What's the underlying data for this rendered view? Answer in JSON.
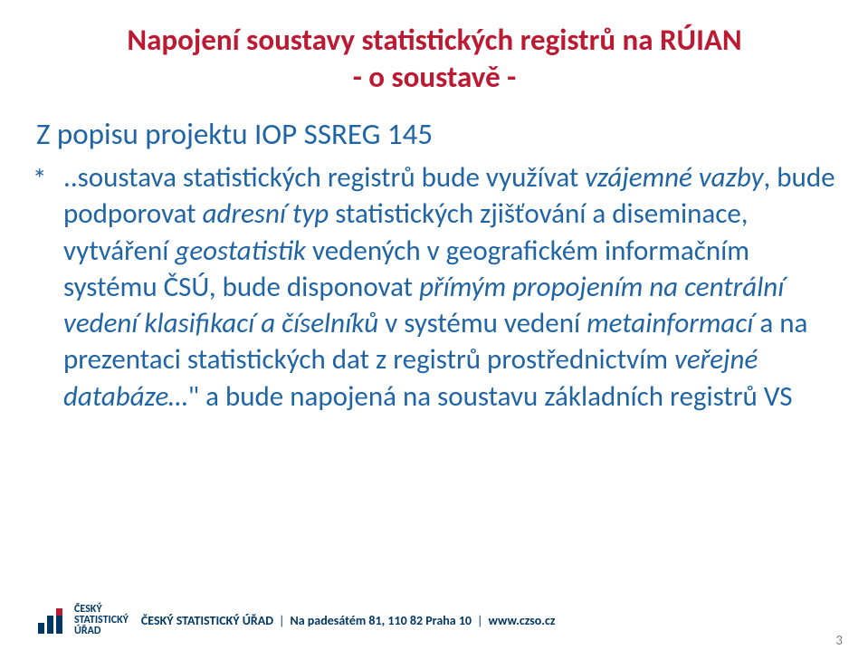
{
  "colors": {
    "title": "#bc1a33",
    "subtitle": "#1f64a5",
    "body": "#1f64a5",
    "footer_strong": "#023865",
    "footer_normal": "#023865",
    "logo_blue": "#023865",
    "logo_red": "#bc1a33",
    "pagenum": "#808080",
    "bullet": "#1f64a5"
  },
  "fonts": {
    "title_size": 33,
    "subtitle_size": 33,
    "body_size": 31,
    "bullet_size": 31,
    "footer_size": 14,
    "logo_text_size": 12,
    "pagenum_size": 15
  },
  "title": {
    "line1": "Napojení soustavy statistických registrů na RÚIAN",
    "line2": "- o soustavě -"
  },
  "subtitle": "Z popisu projektu IOP SSREG 145",
  "bullet_char": "*",
  "body_runs": [
    {
      "t": "  ..soustava statistických registrů bude využívat ",
      "i": false
    },
    {
      "t": "vzájemné vazby",
      "i": true
    },
    {
      "t": ", bude podporovat ",
      "i": false
    },
    {
      "t": "adresní typ",
      "i": true
    },
    {
      "t": " statistických zjišťování a diseminace, vytváření ",
      "i": false
    },
    {
      "t": "geostatistik",
      "i": true
    },
    {
      "t": " vedených v geografickém informačním systému ČSÚ, bude disponovat ",
      "i": false
    },
    {
      "t": "přímým propojením na centrální vedení klasifikací a číselníků",
      "i": true
    },
    {
      "t": " v systému vedení ",
      "i": false
    },
    {
      "t": "metainformací",
      "i": true
    },
    {
      "t": " a na prezentaci statistických dat z registrů prostřednictvím ",
      "i": false
    },
    {
      "t": "veřejné databáze…",
      "i": true
    },
    {
      "t": "\" a bude napojená na soustavu základních registrů VS",
      "i": false
    }
  ],
  "logo": {
    "line1": "ČESKÝ",
    "line2": "STATISTICKÝ",
    "line3": "ÚŘAD"
  },
  "footer": {
    "org": "ČESKÝ STATISTICKÝ ÚŘAD",
    "sep": "|",
    "addr": "Na padesátém 81, 110 82 Praha 10",
    "url": "www.czso.cz"
  },
  "page_number": "3"
}
